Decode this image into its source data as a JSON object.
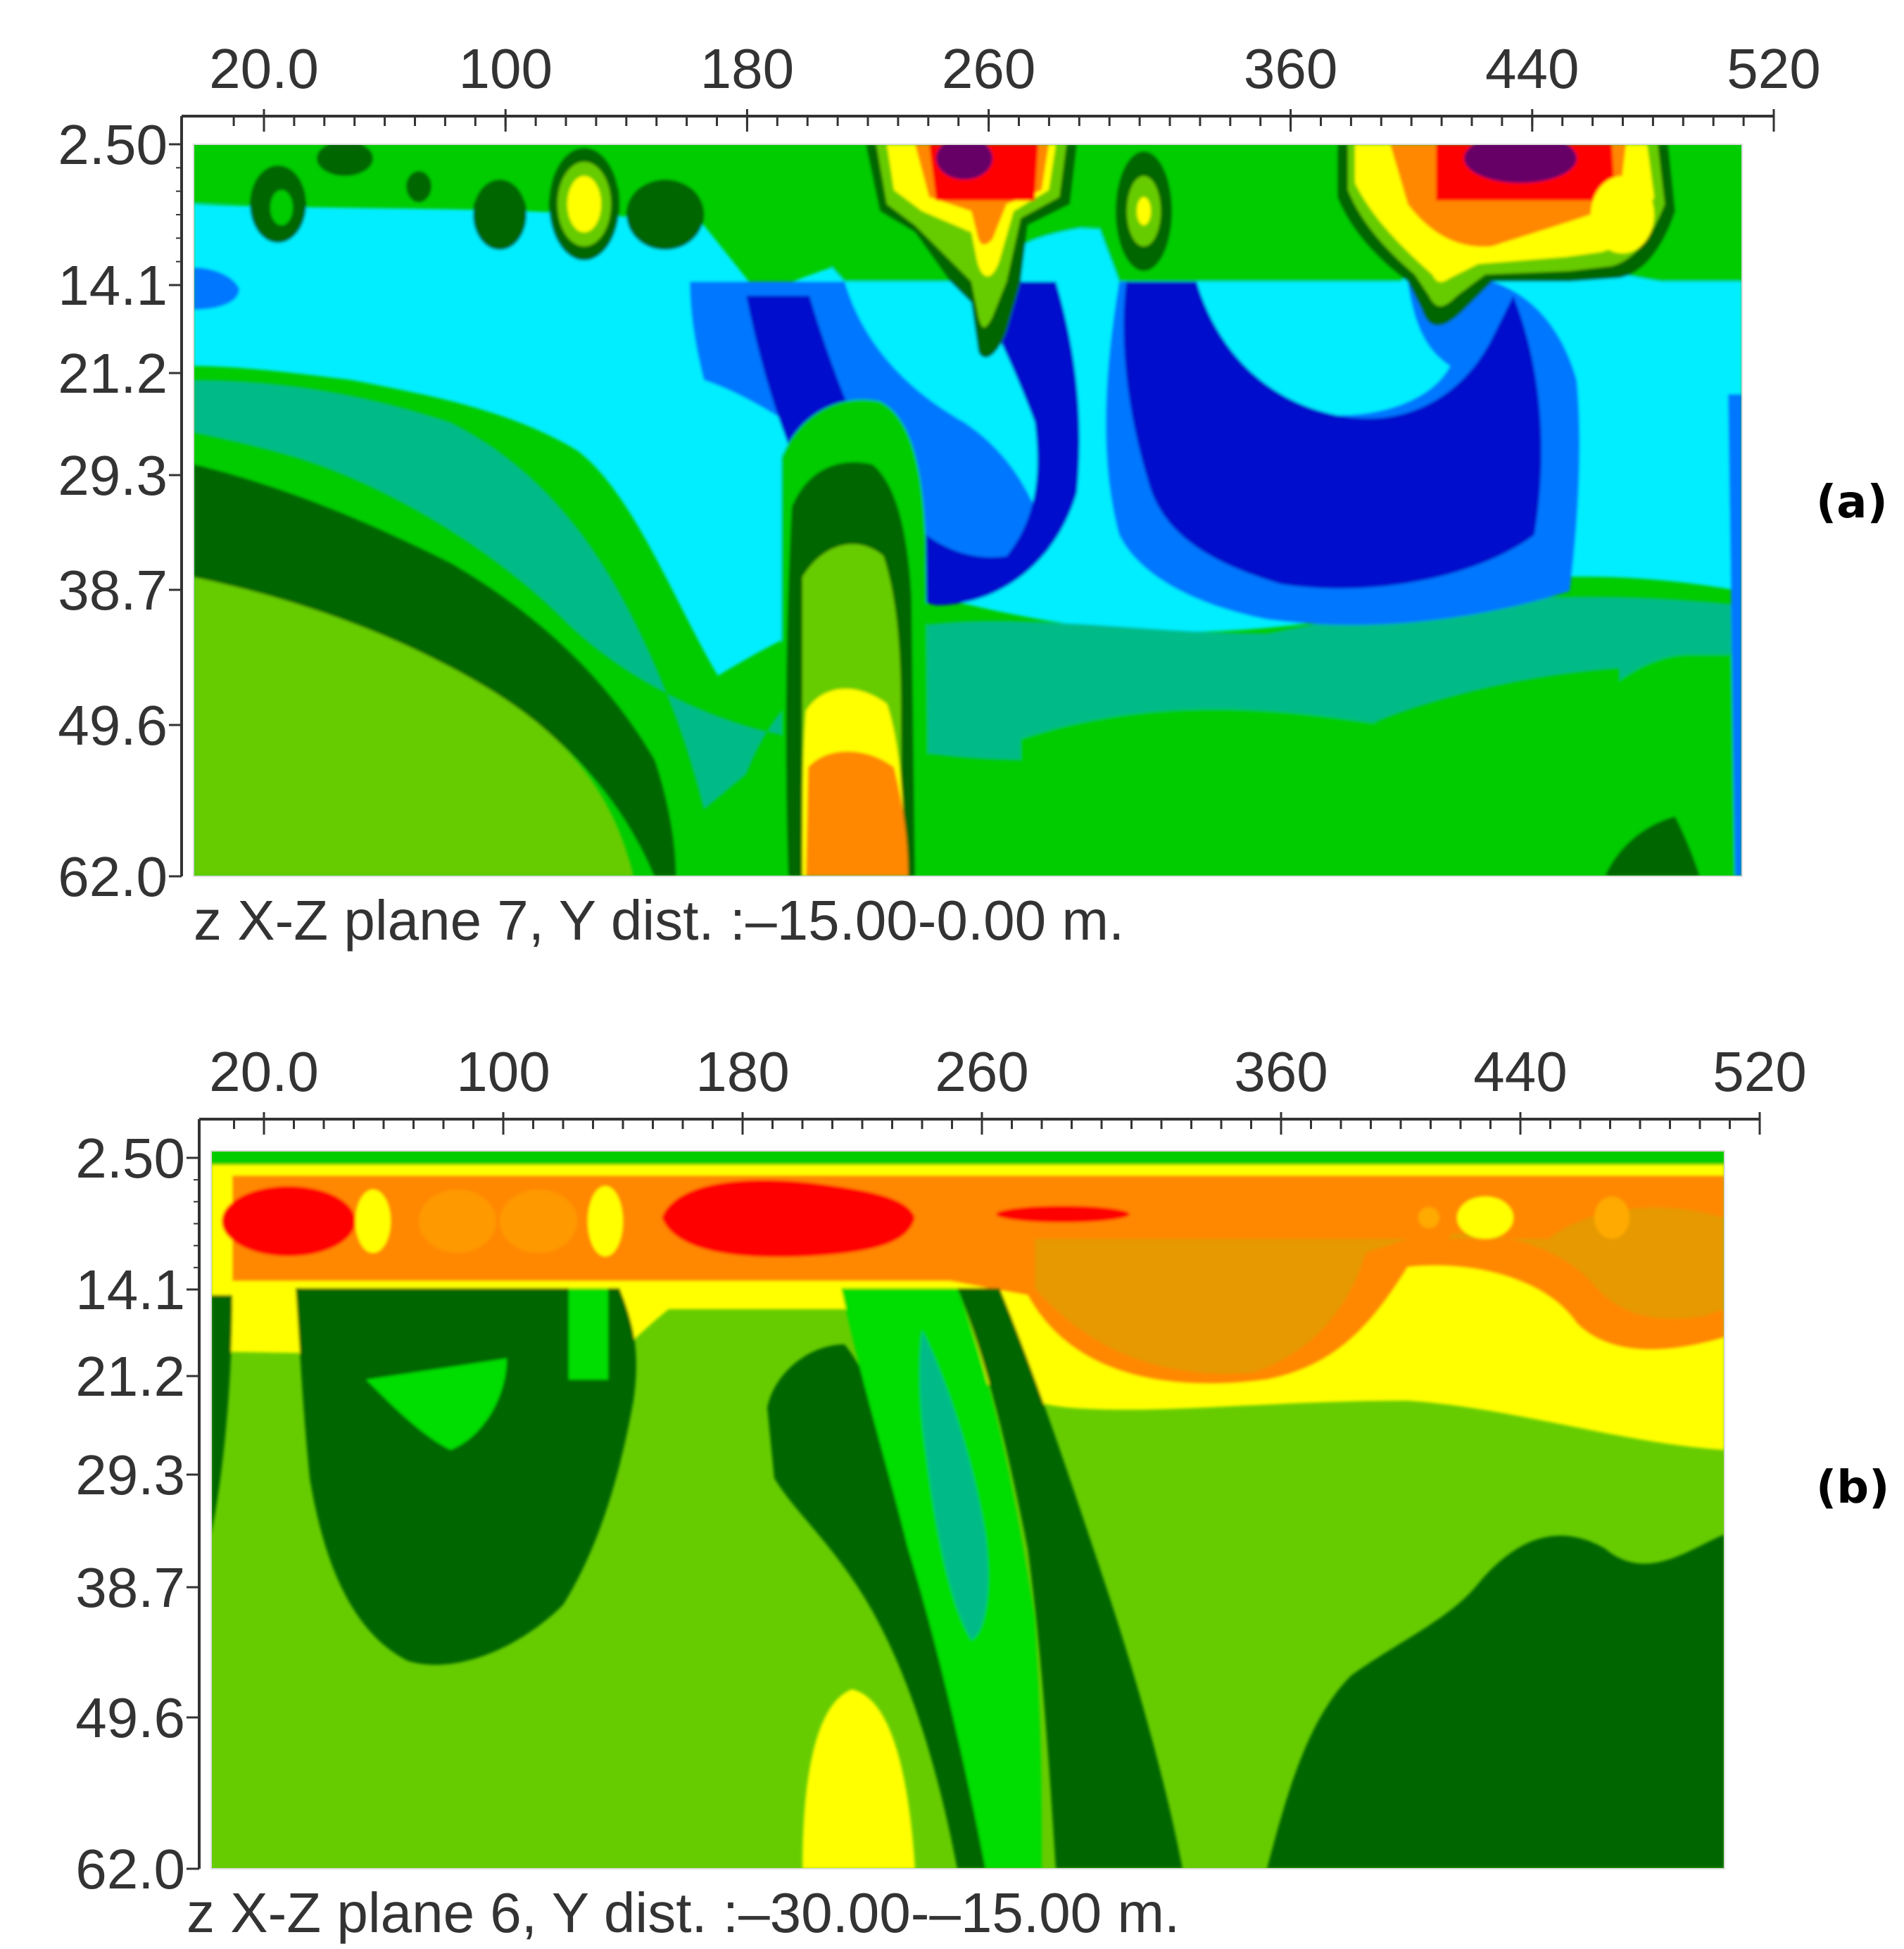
{
  "chart_data": [
    {
      "type": "heatmap",
      "panel_label": "(a)",
      "caption": "z X-Z plane 7, Y dist. :–15.00-0.00 m.",
      "x_ticks": [
        "20.0",
        "100",
        "180",
        "260",
        "360",
        "440",
        "520"
      ],
      "x_tick_values": [
        20,
        100,
        180,
        260,
        360,
        440,
        520
      ],
      "y_ticks": [
        "2.50",
        "14.1",
        "21.2",
        "29.3",
        "38.7",
        "49.6",
        "62.0"
      ],
      "y_tick_values": [
        2.5,
        14.1,
        21.2,
        29.3,
        38.7,
        49.6,
        62.0
      ],
      "x_axis_position": "top",
      "xlim": [
        0,
        540
      ],
      "ylim": [
        2.5,
        62.0
      ],
      "grid": false,
      "colors": {
        "background": "#00cc00",
        "cyan": "#00eeff",
        "blue": "#0077ff",
        "deep_blue": "#0011cc",
        "dark_green": "#006600",
        "mid_green": "#66cc00",
        "teal": "#00bb88",
        "yellow": "#ffff00",
        "orange": "#ff8800",
        "red": "#ff0000",
        "purple": "#660066"
      }
    },
    {
      "type": "heatmap",
      "panel_label": "(b)",
      "caption": "z X-Z plane 6, Y dist. :–30.00-–15.00 m.",
      "x_ticks": [
        "20.0",
        "100",
        "180",
        "260",
        "360",
        "440",
        "520"
      ],
      "x_tick_values": [
        20,
        100,
        180,
        260,
        360,
        440,
        520
      ],
      "y_ticks": [
        "2.50",
        "14.1",
        "21.2",
        "29.3",
        "38.7",
        "49.6",
        "62.0"
      ],
      "y_tick_values": [
        2.5,
        14.1,
        21.2,
        29.3,
        38.7,
        49.6,
        62.0
      ],
      "x_axis_position": "top",
      "xlim": [
        0,
        540
      ],
      "ylim": [
        2.5,
        62.0
      ],
      "grid": false,
      "colors": {
        "background": "#66cc00",
        "dark_green": "#006600",
        "bright_green": "#00dd00",
        "teal": "#00bb88",
        "yellow": "#ffff00",
        "orange": "#ff8800",
        "red": "#ff0000"
      }
    }
  ]
}
